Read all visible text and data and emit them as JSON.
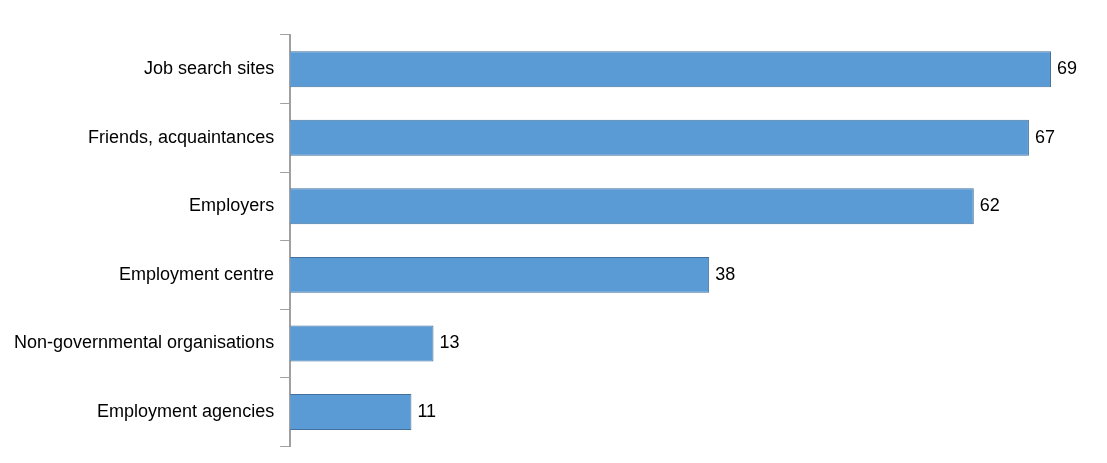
{
  "chart_data": {
    "type": "bar",
    "orientation": "horizontal",
    "categories": [
      "Job search sites",
      "Friends, acquaintances",
      "Employers",
      "Employment centre",
      "Non-governmental organisations",
      "Employment agencies"
    ],
    "values": [
      69,
      67,
      62,
      38,
      13,
      11
    ],
    "color": "#5b9bd5",
    "data_labels": true
  }
}
